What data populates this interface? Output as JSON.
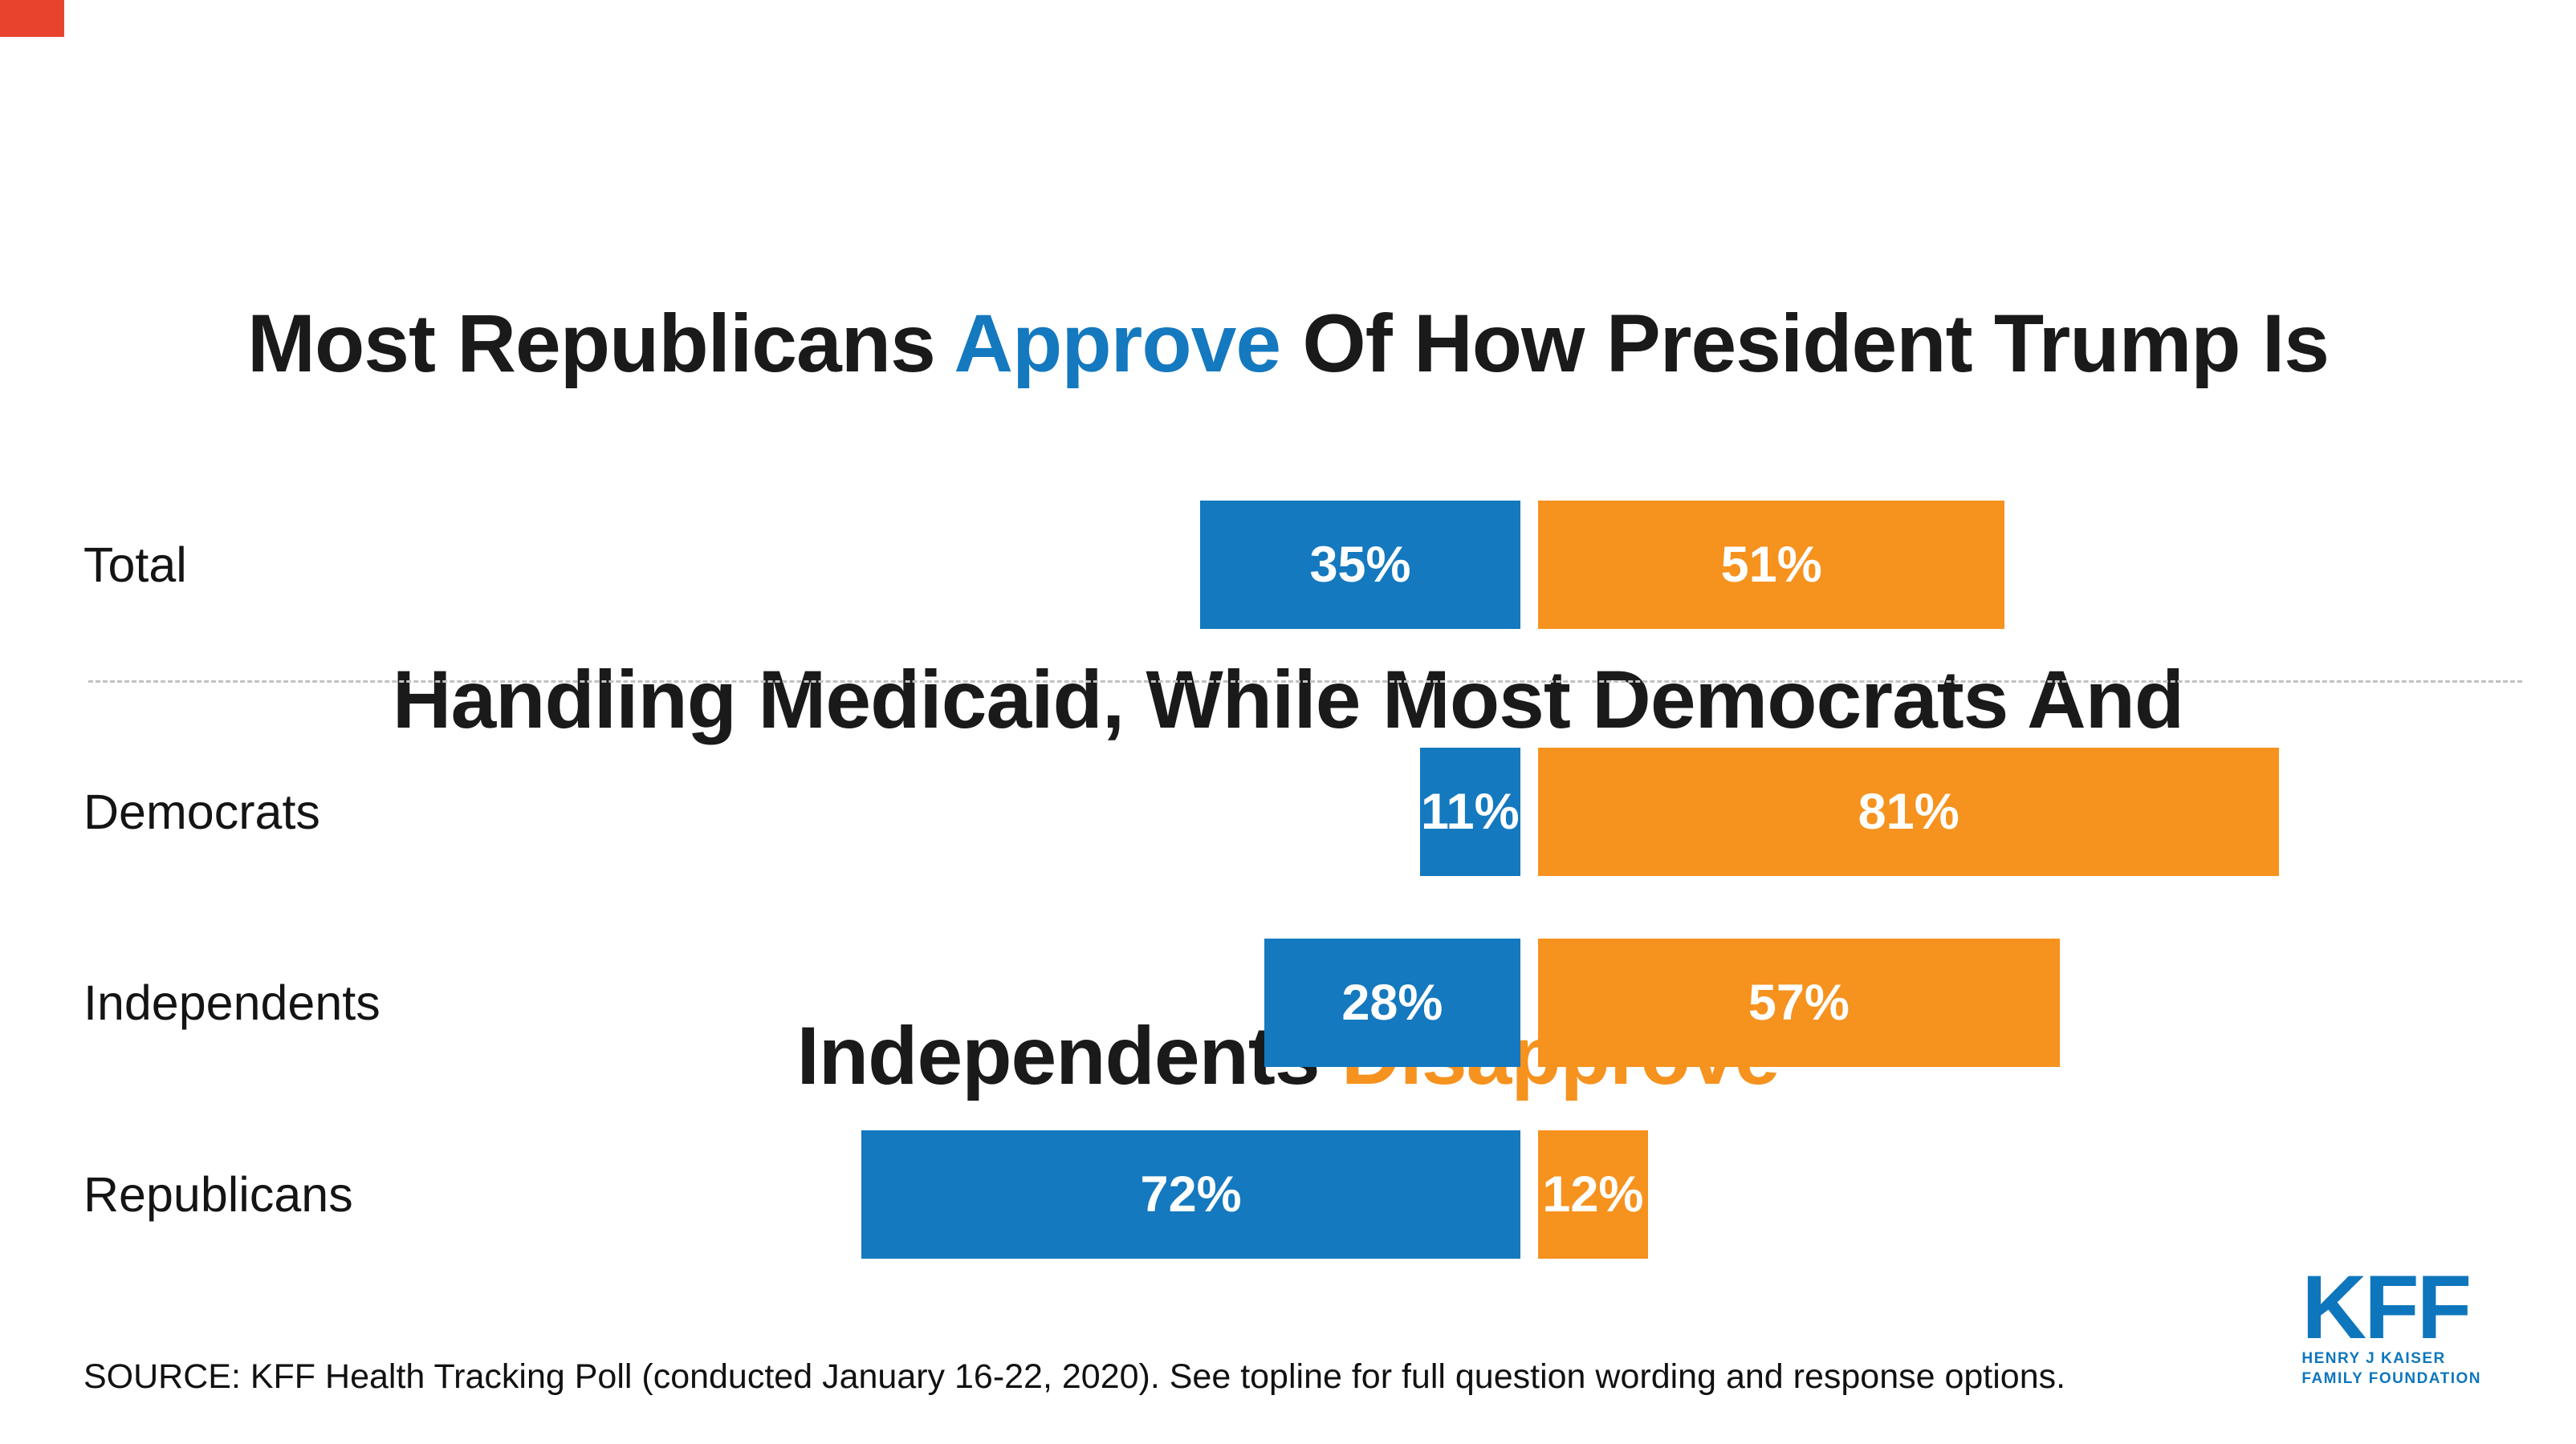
{
  "title": {
    "part1": "Most Republicans ",
    "approve": "Approve",
    "part2": " Of How President Trump Is",
    "line2": "Handling Medicaid, While Most Democrats And",
    "part3": "Independents ",
    "disapprove": "Disapprove"
  },
  "colors": {
    "approve_blue": "#1479bf",
    "disapprove_orange": "#f6921e",
    "title_text": "#1a1a1a",
    "logo_blue": "#0e76bc",
    "corner_mark_red": "#e8432d"
  },
  "chart_data": {
    "type": "bar",
    "variant": "horizontal-diverging",
    "categories": [
      "Total",
      "Democrats",
      "Independents",
      "Republicans"
    ],
    "series": [
      {
        "name": "Approve",
        "color": "#1479bf",
        "values": [
          35,
          11,
          28,
          72
        ]
      },
      {
        "name": "Disapprove",
        "color": "#f6921e",
        "values": [
          51,
          81,
          57,
          12
        ]
      }
    ],
    "value_format": "percent",
    "axes": "none",
    "gridlines": false,
    "legend": "none",
    "divider_after_category": "Total",
    "value_labels": [
      "35%",
      "11%",
      "28%",
      "72%",
      "51%",
      "81%",
      "57%",
      "12%"
    ]
  },
  "source": "SOURCE: KFF Health Tracking Poll (conducted January 16-22, 2020). See topline for full question wording and response options.",
  "logo": {
    "text": "KFF",
    "subline1": "HENRY J KAISER",
    "subline2": "FAMILY FOUNDATION"
  }
}
